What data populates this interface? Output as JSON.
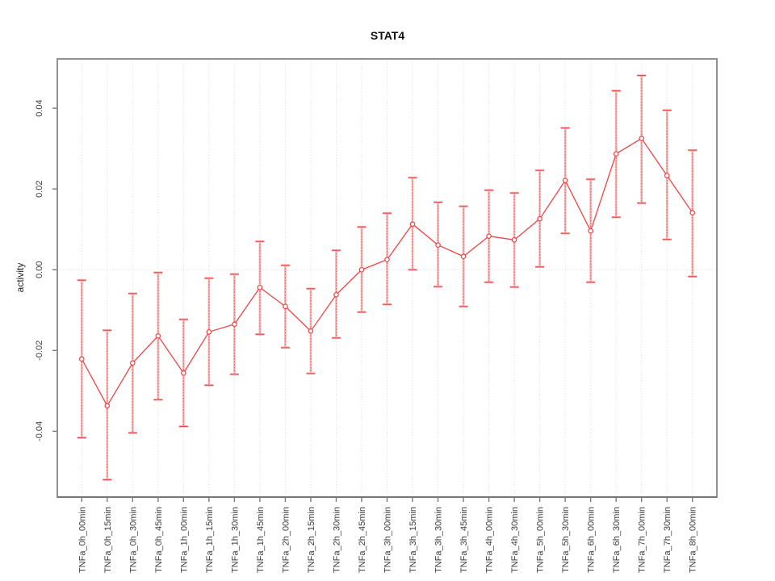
{
  "chart_data": {
    "type": "line",
    "title": "STAT4",
    "xlabel": "",
    "ylabel": "activity",
    "legend": "none",
    "marker": "open-circle",
    "categories": [
      "TNFa_0h_00min",
      "TNFa_0h_15min",
      "TNFa_0h_30min",
      "TNFa_0h_45min",
      "TNFa_1h_00min",
      "TNFa_1h_15min",
      "TNFa_1h_30min",
      "TNFa_1h_45min",
      "TNFa_2h_00min",
      "TNFa_2h_15min",
      "TNFa_2h_30min",
      "TNFa_2h_45min",
      "TNFa_3h_00min",
      "TNFa_3h_15min",
      "TNFa_3h_30min",
      "TNFa_3h_45min",
      "TNFa_4h_00min",
      "TNFa_4h_30min",
      "TNFa_5h_00min",
      "TNFa_5h_30min",
      "TNFa_6h_00min",
      "TNFa_6h_30min",
      "TNFa_7h_00min",
      "TNFa_7h_30min",
      "TNFa_8h_00min"
    ],
    "series": [
      {
        "name": "STAT4 activity",
        "values": [
          -0.0221,
          -0.0337,
          -0.0231,
          -0.0164,
          -0.0256,
          -0.0154,
          -0.0135,
          -0.0044,
          -0.0091,
          -0.0152,
          -0.0062,
          0.0,
          0.0025,
          0.0113,
          0.0061,
          0.0033,
          0.0083,
          0.0074,
          0.0126,
          0.0221,
          0.0096,
          0.0287,
          0.0325,
          0.0233,
          0.0141
        ],
        "ci_upper": [
          -0.0026,
          -0.015,
          -0.0059,
          -0.0007,
          -0.0123,
          -0.0021,
          -0.0011,
          0.007,
          0.0011,
          -0.0047,
          0.0048,
          0.0106,
          0.014,
          0.0228,
          0.0167,
          0.0157,
          0.0197,
          0.019,
          0.0246,
          0.0351,
          0.0224,
          0.0443,
          0.0481,
          0.0395,
          0.0296
        ],
        "ci_lower": [
          -0.0416,
          -0.052,
          -0.0404,
          -0.0322,
          -0.0388,
          -0.0286,
          -0.0259,
          -0.016,
          -0.0193,
          -0.0257,
          -0.0169,
          -0.0105,
          -0.0086,
          0.0,
          -0.0042,
          -0.0091,
          -0.0031,
          -0.0043,
          0.0007,
          0.009,
          -0.0031,
          0.013,
          0.0165,
          0.0075,
          -0.0017
        ]
      }
    ],
    "yticks": [
      -0.04,
      -0.02,
      0,
      0.02,
      0.04
    ],
    "ytick_labels": [
      "-0.04",
      "-0.02",
      "0.00",
      "0.02",
      "0.04"
    ],
    "ylim": [
      -0.0563,
      0.0522
    ],
    "grid": {
      "vertical_dotted_per_category": true,
      "horizontal_dotted_at_zero": true
    },
    "error_bars": {
      "caps": true,
      "style": "pink bar with dashed red overlay"
    },
    "colors": {
      "series": "#ee4444",
      "bar_fill": "#f7b2b2",
      "bar_dash": "#ef5b5b",
      "grid": "#d9d9d9",
      "frame": "#919191",
      "axis_bottom": "#6e6e6e",
      "tick": "#7a7a7a",
      "text": "#3d3d3d",
      "title": "#111111"
    }
  }
}
